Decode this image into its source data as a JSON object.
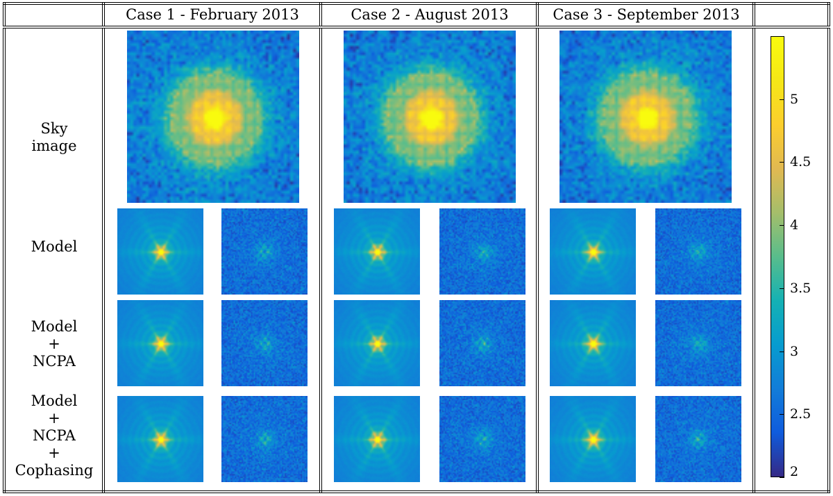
{
  "header": {
    "cases": [
      "Case 1 - February 2013",
      "Case 2 - August 2013",
      "Case 3 - September 2013"
    ]
  },
  "rows": [
    {
      "label_lines": [
        "Sky",
        "image"
      ]
    },
    {
      "label_lines": [
        "Model"
      ]
    },
    {
      "label_lines": [
        "Model",
        "+",
        "NCPA"
      ]
    },
    {
      "label_lines": [
        "Model",
        "+",
        "NCPA",
        "+",
        "Cophasing"
      ]
    }
  ],
  "colorbar": {
    "colormap": "parula",
    "min": 2,
    "max": 5.5,
    "ticks": [
      "5",
      "4.5",
      "4",
      "3.5",
      "3",
      "2.5",
      "2"
    ]
  },
  "colors": {
    "low": "#352a87",
    "mid": "#21b1a0",
    "high": "#f9fb0e"
  },
  "panel_types": {
    "sky": "sky image",
    "model": "model psf",
    "residual": "residual"
  }
}
